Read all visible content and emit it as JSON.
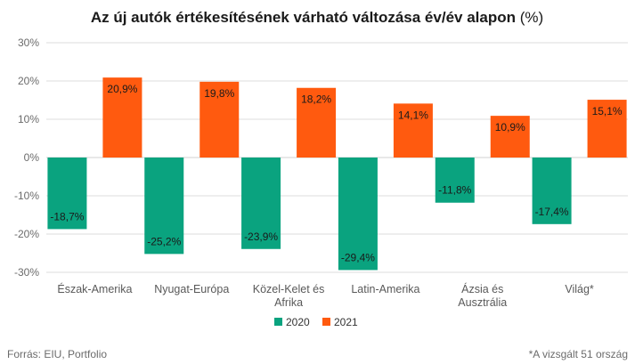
{
  "chart_data": {
    "type": "bar",
    "title": "Az új autók értékesítésének várható változása év/év alapon",
    "title_unit": "(%)",
    "categories": [
      [
        "Észak-Amerika"
      ],
      [
        "Nyugat-Európa"
      ],
      [
        "Közel-Kelet és",
        "Afrika"
      ],
      [
        "Latin-Amerika"
      ],
      [
        "Ázsia és",
        "Ausztrália"
      ],
      [
        "Világ*"
      ]
    ],
    "series": [
      {
        "name": "2020",
        "color": "#0aa37f",
        "values": [
          -18.7,
          -25.2,
          -23.9,
          -29.4,
          -11.8,
          -17.4
        ],
        "labels": [
          "-18,7%",
          "-25,2%",
          "-23,9%",
          "-29,4%",
          "-11,8%",
          "-17,4%"
        ]
      },
      {
        "name": "2021",
        "color": "#ff5a0f",
        "values": [
          20.9,
          19.8,
          18.2,
          14.1,
          10.9,
          15.1
        ],
        "labels": [
          "20,9%",
          "19,8%",
          "18,2%",
          "14,1%",
          "10,9%",
          "15,1%"
        ]
      }
    ],
    "ylim": [
      -30,
      30
    ],
    "yticks": [
      30,
      20,
      10,
      0,
      -10,
      -20,
      -30
    ],
    "ytick_labels": [
      "30%",
      "20%",
      "10%",
      "0%",
      "-10%",
      "-20%",
      "-30%"
    ],
    "grid": true,
    "legend_position": "bottom-center"
  },
  "footer": {
    "source": "Forrás: EIU, Portfolio",
    "note": "*A vizsgált 51 ország"
  }
}
